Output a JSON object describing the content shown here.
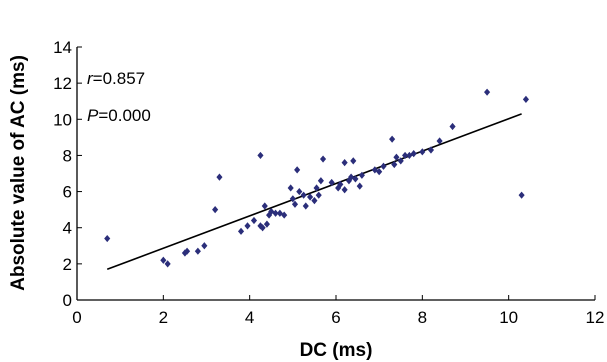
{
  "chart_data": {
    "type": "scatter",
    "xlabel": "DC (ms)",
    "ylabel": "Absolute value of AC (ms)",
    "xlim": [
      0,
      12
    ],
    "ylim": [
      0,
      14
    ],
    "xticks": [
      0,
      2,
      4,
      6,
      8,
      10,
      12
    ],
    "yticks": [
      0,
      2,
      4,
      6,
      8,
      10,
      12,
      14
    ],
    "grid": false,
    "annotations": {
      "r_label": "r",
      "r_value": "=0.857",
      "p_label": "P",
      "p_value": "=0.000"
    },
    "marker_color": "#2b2e7a",
    "line_color": "#000000",
    "regression_line": {
      "x": [
        0.7,
        10.3
      ],
      "y": [
        1.7,
        10.3
      ]
    },
    "points": [
      {
        "x": 0.7,
        "y": 3.4
      },
      {
        "x": 2.0,
        "y": 2.2
      },
      {
        "x": 2.1,
        "y": 2.0
      },
      {
        "x": 2.5,
        "y": 2.6
      },
      {
        "x": 2.55,
        "y": 2.7
      },
      {
        "x": 2.8,
        "y": 2.7
      },
      {
        "x": 2.95,
        "y": 3.0
      },
      {
        "x": 3.2,
        "y": 5.0
      },
      {
        "x": 3.3,
        "y": 6.8
      },
      {
        "x": 3.8,
        "y": 3.8
      },
      {
        "x": 3.95,
        "y": 4.1
      },
      {
        "x": 4.1,
        "y": 4.4
      },
      {
        "x": 4.25,
        "y": 8.0
      },
      {
        "x": 4.25,
        "y": 4.1
      },
      {
        "x": 4.3,
        "y": 4.0
      },
      {
        "x": 4.35,
        "y": 5.2
      },
      {
        "x": 4.4,
        "y": 4.2
      },
      {
        "x": 4.45,
        "y": 4.7
      },
      {
        "x": 4.5,
        "y": 4.9
      },
      {
        "x": 4.6,
        "y": 4.8
      },
      {
        "x": 4.7,
        "y": 4.8
      },
      {
        "x": 4.8,
        "y": 4.7
      },
      {
        "x": 4.95,
        "y": 6.2
      },
      {
        "x": 5.0,
        "y": 5.6
      },
      {
        "x": 5.05,
        "y": 5.3
      },
      {
        "x": 5.1,
        "y": 7.2
      },
      {
        "x": 5.15,
        "y": 6.0
      },
      {
        "x": 5.25,
        "y": 5.8
      },
      {
        "x": 5.3,
        "y": 5.2
      },
      {
        "x": 5.4,
        "y": 5.7
      },
      {
        "x": 5.5,
        "y": 5.5
      },
      {
        "x": 5.55,
        "y": 6.2
      },
      {
        "x": 5.6,
        "y": 5.8
      },
      {
        "x": 5.65,
        "y": 6.6
      },
      {
        "x": 5.7,
        "y": 7.8
      },
      {
        "x": 5.9,
        "y": 6.5
      },
      {
        "x": 6.05,
        "y": 6.2
      },
      {
        "x": 6.1,
        "y": 6.4
      },
      {
        "x": 6.2,
        "y": 7.6
      },
      {
        "x": 6.2,
        "y": 6.1
      },
      {
        "x": 6.3,
        "y": 6.6
      },
      {
        "x": 6.35,
        "y": 6.8
      },
      {
        "x": 6.4,
        "y": 7.7
      },
      {
        "x": 6.45,
        "y": 6.7
      },
      {
        "x": 6.55,
        "y": 6.3
      },
      {
        "x": 6.6,
        "y": 6.9
      },
      {
        "x": 6.9,
        "y": 7.2
      },
      {
        "x": 7.0,
        "y": 7.1
      },
      {
        "x": 7.1,
        "y": 7.4
      },
      {
        "x": 7.3,
        "y": 8.9
      },
      {
        "x": 7.35,
        "y": 7.5
      },
      {
        "x": 7.4,
        "y": 7.9
      },
      {
        "x": 7.5,
        "y": 7.7
      },
      {
        "x": 7.6,
        "y": 8.0
      },
      {
        "x": 7.7,
        "y": 8.0
      },
      {
        "x": 7.8,
        "y": 8.1
      },
      {
        "x": 8.0,
        "y": 8.2
      },
      {
        "x": 8.2,
        "y": 8.3
      },
      {
        "x": 8.4,
        "y": 8.8
      },
      {
        "x": 8.7,
        "y": 9.6
      },
      {
        "x": 9.5,
        "y": 11.5
      },
      {
        "x": 10.3,
        "y": 5.8
      },
      {
        "x": 10.4,
        "y": 11.1
      }
    ]
  }
}
